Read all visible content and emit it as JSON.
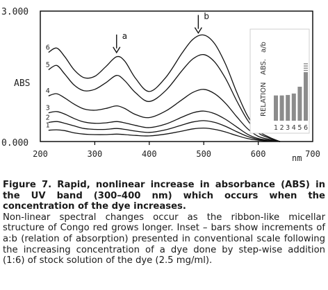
{
  "chart_data": {
    "type": "line",
    "xlabel": "nm",
    "ylabel": "ABS",
    "xlim": [
      200,
      700
    ],
    "ylim": [
      0,
      3.0
    ],
    "x_ticks": [
      200,
      300,
      400,
      500,
      600,
      700
    ],
    "y_tick_labels": [
      "3.000",
      "0.000"
    ],
    "x": [
      215,
      230,
      245,
      262,
      280,
      300,
      320,
      340,
      355,
      375,
      400,
      430,
      460,
      480,
      500,
      520,
      540,
      560,
      580,
      600,
      620,
      640
    ],
    "series": [
      {
        "name": "1",
        "values": [
          0.26,
          0.27,
          0.25,
          0.2,
          0.17,
          0.16,
          0.16,
          0.17,
          0.16,
          0.14,
          0.13,
          0.17,
          0.24,
          0.29,
          0.31,
          0.28,
          0.22,
          0.14,
          0.07,
          0.03,
          0.01,
          0.0
        ]
      },
      {
        "name": "2",
        "values": [
          0.44,
          0.46,
          0.42,
          0.36,
          0.3,
          0.28,
          0.28,
          0.3,
          0.28,
          0.24,
          0.21,
          0.27,
          0.38,
          0.45,
          0.48,
          0.44,
          0.35,
          0.23,
          0.12,
          0.05,
          0.02,
          0.0
        ]
      },
      {
        "name": "3",
        "values": [
          0.66,
          0.69,
          0.63,
          0.53,
          0.45,
          0.42,
          0.43,
          0.46,
          0.43,
          0.37,
          0.32,
          0.4,
          0.56,
          0.66,
          0.7,
          0.64,
          0.51,
          0.34,
          0.17,
          0.07,
          0.03,
          0.0
        ]
      },
      {
        "name": "4",
        "values": [
          1.05,
          1.1,
          1.0,
          0.86,
          0.75,
          0.72,
          0.76,
          0.82,
          0.76,
          0.62,
          0.55,
          0.7,
          0.96,
          1.13,
          1.2,
          1.1,
          0.88,
          0.58,
          0.3,
          0.12,
          0.05,
          0.0
        ]
      },
      {
        "name": "5",
        "values": [
          1.65,
          1.75,
          1.55,
          1.3,
          1.17,
          1.2,
          1.35,
          1.52,
          1.4,
          1.12,
          0.92,
          1.17,
          1.63,
          1.9,
          2.0,
          1.83,
          1.45,
          0.95,
          0.5,
          0.2,
          0.08,
          0.0
        ]
      },
      {
        "name": "6",
        "values": [
          2.05,
          2.15,
          1.95,
          1.65,
          1.47,
          1.5,
          1.72,
          1.95,
          1.85,
          1.45,
          1.15,
          1.47,
          2.03,
          2.35,
          2.45,
          2.25,
          1.78,
          1.15,
          0.6,
          0.25,
          0.1,
          0.0
        ]
      }
    ],
    "annotations": [
      {
        "label": "a",
        "x": 340
      },
      {
        "label": "b",
        "x": 490
      }
    ],
    "inset": {
      "type": "bar",
      "ylabel_left": "RELATION",
      "ylabel_mid": "ABS.",
      "ylabel_right": "a/b",
      "categories": [
        "1",
        "2",
        "3",
        "4",
        "5",
        "6"
      ],
      "values": [
        0.52,
        0.52,
        0.53,
        0.56,
        0.7,
        1.0
      ]
    }
  },
  "caption": {
    "title": "Figure 7. Rapid, nonlinear increase in absorbance (ABS) in the UV band (300–400 nm) which occurs when the concentration of the dye increases.",
    "body": "Non-linear spectral changes occur as the ribbon-like micellar structure of Congo red grows longer. Inset – bars show increments of a:b (relation of absorption) presented in conventional scale following the increasing concentration of a dye done by step-wise addition (1:6) of stock solution of the dye (2.5 mg/ml)."
  }
}
